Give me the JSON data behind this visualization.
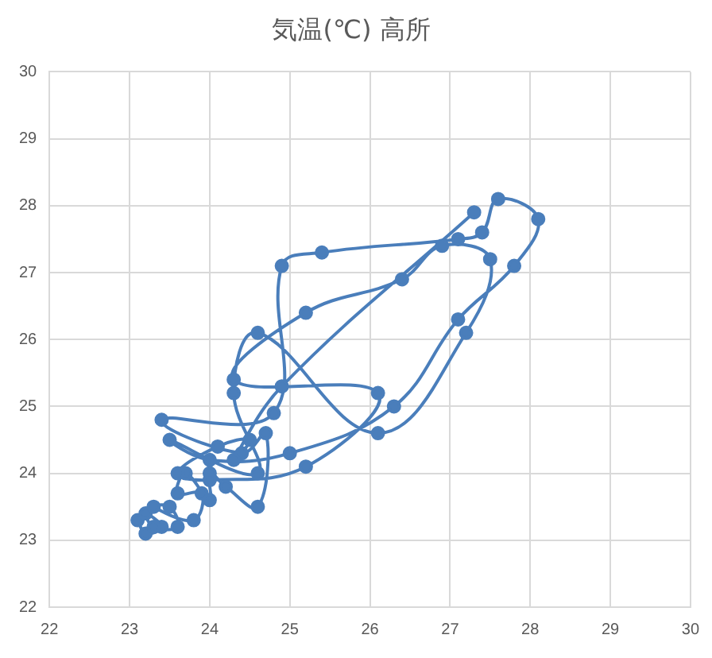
{
  "chart_data": {
    "type": "line",
    "title": "気温(℃) 高所",
    "xlim": [
      22,
      30
    ],
    "xticks": [
      22,
      23,
      24,
      25,
      26,
      27,
      28,
      29,
      30
    ],
    "ylim": [
      22,
      30
    ],
    "yticks": [
      22,
      23,
      24,
      25,
      26,
      27,
      28,
      29,
      30
    ],
    "grid": true,
    "legend": false,
    "marker": "circle",
    "line_style": "solid",
    "series": [
      {
        "color": "#4a7ebb",
        "x": [
          23.1,
          23.2,
          23.4,
          23.2,
          23.3,
          23.6,
          23.5,
          23.3,
          23.8,
          23.9,
          23.6,
          23.7,
          24.0,
          24.0,
          24.2,
          24.6,
          24.7,
          24.4,
          23.4,
          24.8,
          24.9,
          25.4,
          27.1,
          27.4,
          27.6,
          28.1,
          27.8,
          27.1,
          26.3,
          25.0,
          24.0,
          23.5,
          24.6,
          24.3,
          24.6,
          26.1,
          27.2,
          27.5,
          26.9,
          26.4,
          25.2,
          24.3,
          26.1,
          25.2,
          24.0,
          23.6,
          24.1,
          24.5,
          24.3,
          24.9,
          27.3
        ],
        "values": [
          23.3,
          23.1,
          23.2,
          23.4,
          23.2,
          23.2,
          23.5,
          23.5,
          23.3,
          23.7,
          23.7,
          24.0,
          23.6,
          24.0,
          23.8,
          23.5,
          24.6,
          24.3,
          24.8,
          24.9,
          27.1,
          27.3,
          27.5,
          27.6,
          28.1,
          27.8,
          27.1,
          26.3,
          25.0,
          24.3,
          24.2,
          24.5,
          24.0,
          25.2,
          26.1,
          24.6,
          26.1,
          27.2,
          27.4,
          26.9,
          26.4,
          25.4,
          25.2,
          24.1,
          23.9,
          24.0,
          24.4,
          24.5,
          24.2,
          25.3,
          27.9
        ]
      }
    ]
  }
}
